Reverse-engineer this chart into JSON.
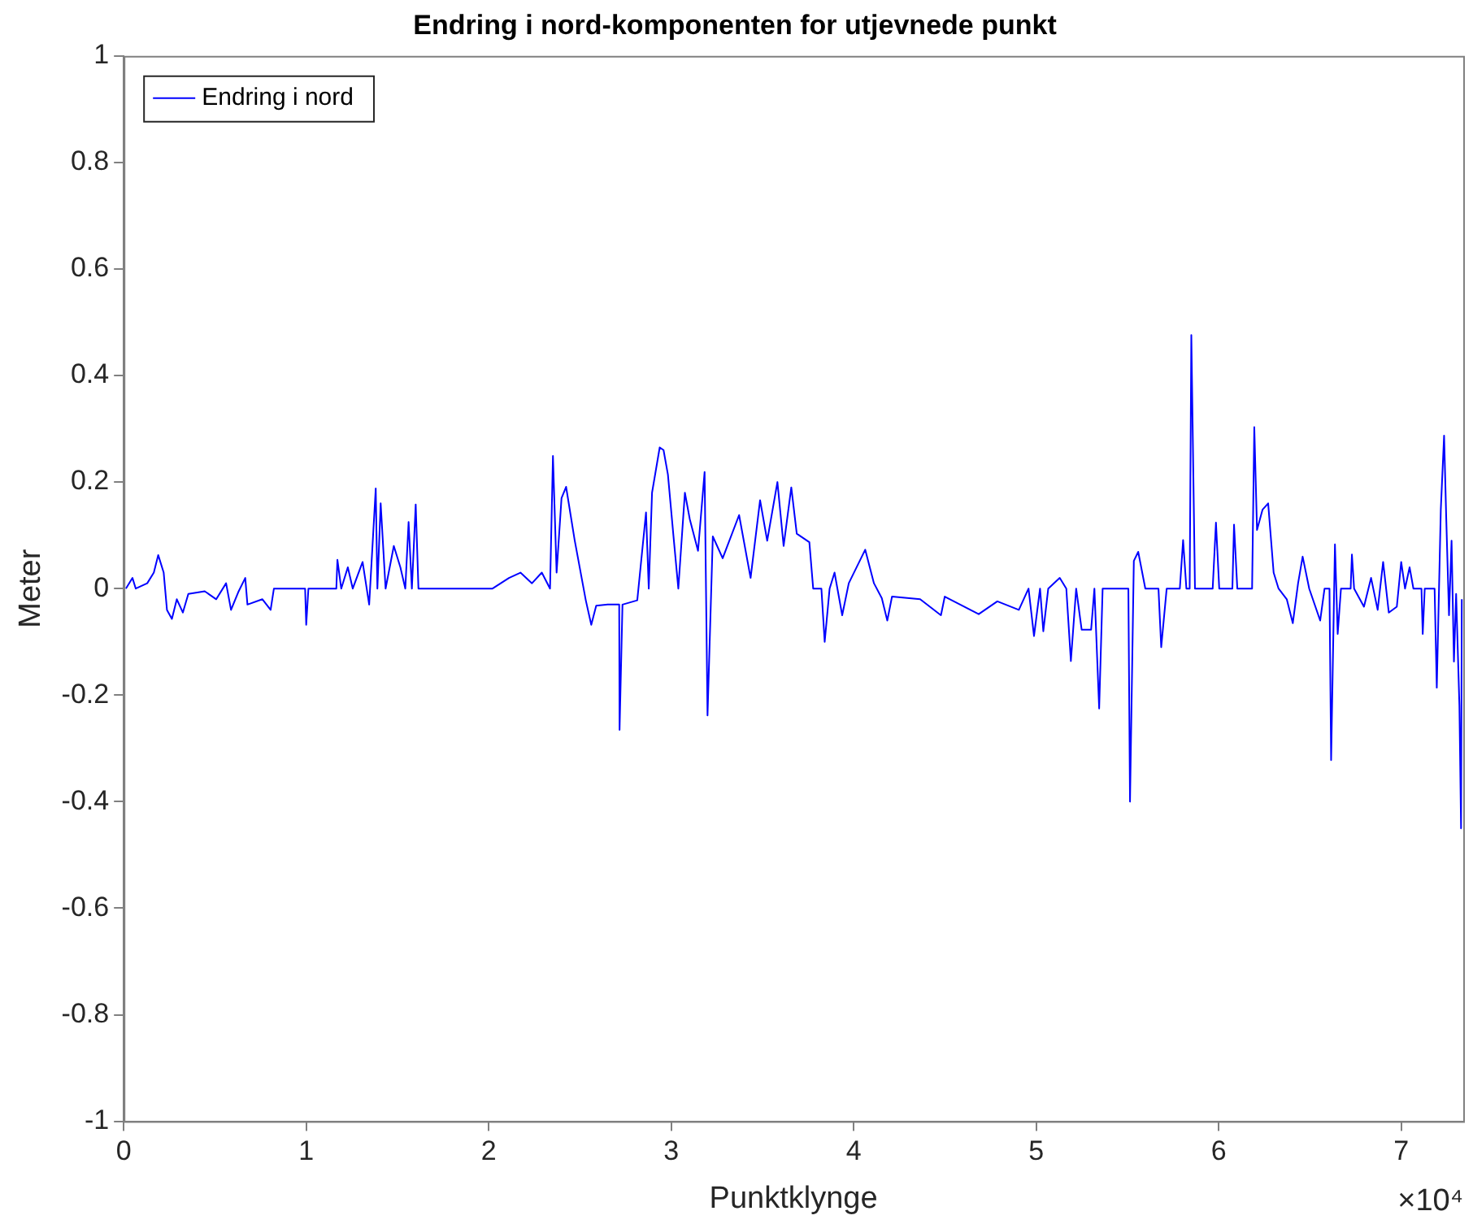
{
  "chart_data": {
    "type": "line",
    "title": "Endring i nord-komponenten for utjevnede punkt",
    "xlabel": "Punktklynge",
    "ylabel": "Meter",
    "legend": "top left",
    "annotations": [
      "×10⁴"
    ],
    "xlim": [
      0,
      7.34
    ],
    "ylim": [
      -1,
      1
    ],
    "xticks": [
      0,
      1,
      2,
      3,
      4,
      5,
      6,
      7
    ],
    "yticks": [
      -1,
      -0.8,
      -0.6,
      -0.4,
      -0.2,
      0,
      0.2,
      0.4,
      0.6,
      0.8,
      1
    ],
    "series": [
      {
        "name": "Endring i nord",
        "color": "#0000ff",
        "x": [
          0.012,
          0.048,
          0.066,
          0.129,
          0.165,
          0.189,
          0.219,
          0.237,
          0.264,
          0.291,
          0.324,
          0.354,
          0.444,
          0.507,
          0.561,
          0.588,
          0.63,
          0.666,
          0.678,
          0.76,
          0.805,
          0.823,
          0.994,
          1.0,
          1.012,
          1.165,
          1.171,
          1.192,
          1.228,
          1.255,
          1.309,
          1.345,
          1.381,
          1.39,
          1.408,
          1.435,
          1.48,
          1.516,
          1.543,
          1.561,
          1.579,
          1.6,
          1.615,
          2.021,
          2.111,
          2.174,
          2.237,
          2.291,
          2.336,
          2.352,
          2.372,
          2.399,
          2.424,
          2.471,
          2.532,
          2.562,
          2.589,
          2.652,
          2.715,
          2.717,
          2.733,
          2.814,
          2.862,
          2.877,
          2.895,
          2.937,
          2.958,
          2.982,
          3.012,
          3.039,
          3.075,
          3.102,
          3.147,
          3.183,
          3.199,
          3.228,
          3.282,
          3.372,
          3.435,
          3.487,
          3.526,
          3.582,
          3.616,
          3.658,
          3.688,
          3.757,
          3.778,
          3.823,
          3.841,
          3.868,
          3.895,
          3.937,
          3.973,
          4.063,
          4.111,
          4.154,
          4.184,
          4.21,
          4.364,
          4.478,
          4.499,
          4.685,
          4.787,
          4.905,
          4.958,
          4.988,
          5.021,
          5.039,
          5.066,
          5.129,
          5.165,
          5.19,
          5.219,
          5.249,
          5.301,
          5.319,
          5.345,
          5.364,
          5.505,
          5.514,
          5.535,
          5.559,
          5.598,
          5.67,
          5.685,
          5.715,
          5.787,
          5.805,
          5.823,
          5.841,
          5.85,
          5.87,
          5.967,
          5.985,
          6.003,
          6.075,
          6.084,
          6.102,
          6.183,
          6.195,
          6.21,
          6.24,
          6.271,
          6.301,
          6.328,
          6.373,
          6.406,
          6.435,
          6.46,
          6.496,
          6.556,
          6.58,
          6.607,
          6.616,
          6.637,
          6.652,
          6.67,
          6.723,
          6.73,
          6.742,
          6.796,
          6.835,
          6.871,
          6.901,
          6.932,
          6.976,
          7.0,
          7.021,
          7.046,
          7.067,
          7.111,
          7.118,
          7.129,
          7.183,
          7.195,
          7.217,
          7.235,
          7.247,
          7.262,
          7.276,
          7.289,
          7.301,
          7.319,
          7.328,
          7.332
        ],
        "values": [
          0,
          0.02,
          0,
          0.01,
          0.03,
          0.063,
          0.03,
          -0.04,
          -0.057,
          -0.02,
          -0.045,
          -0.01,
          -0.005,
          -0.02,
          0.01,
          -0.04,
          -0.005,
          0.02,
          -0.03,
          -0.02,
          -0.04,
          0,
          0,
          -0.068,
          0,
          0,
          0.054,
          0,
          0.04,
          0,
          0.05,
          -0.03,
          0.188,
          0,
          0.16,
          0,
          0.08,
          0.04,
          0,
          0.125,
          0,
          0.158,
          0,
          0,
          0.02,
          0.03,
          0.01,
          0.03,
          0,
          0.249,
          0.03,
          0.17,
          0.191,
          0.091,
          -0.022,
          -0.068,
          -0.032,
          -0.03,
          -0.03,
          -0.265,
          -0.03,
          -0.022,
          0.143,
          0,
          0.18,
          0.265,
          0.26,
          0.214,
          0.1,
          0,
          0.18,
          0.13,
          0.071,
          0.219,
          -0.238,
          0.098,
          0.057,
          0.138,
          0.02,
          0.166,
          0.09,
          0.2,
          0.08,
          0.19,
          0.103,
          0.087,
          0,
          0,
          -0.1,
          0,
          0.03,
          -0.05,
          0.01,
          0.073,
          0.01,
          -0.018,
          -0.06,
          -0.015,
          -0.02,
          -0.05,
          -0.015,
          -0.048,
          -0.024,
          -0.04,
          0,
          -0.089,
          0,
          -0.08,
          0,
          0.02,
          0,
          -0.136,
          0,
          -0.077,
          -0.077,
          0,
          -0.225,
          0,
          0,
          -0.4,
          0.052,
          0.069,
          0,
          0,
          -0.11,
          0,
          0,
          0.091,
          0,
          0,
          0.476,
          0,
          0,
          0.124,
          0,
          0,
          0.12,
          0,
          0,
          0.303,
          0.11,
          0.148,
          0.16,
          0.03,
          0,
          -0.02,
          -0.065,
          0.01,
          0.06,
          0,
          -0.06,
          0,
          0,
          -0.322,
          0.083,
          -0.085,
          0,
          0,
          0.064,
          0,
          -0.034,
          0.02,
          -0.04,
          0.05,
          -0.045,
          -0.034,
          0.05,
          0,
          0.04,
          0,
          0,
          -0.085,
          0,
          0,
          -0.186,
          0.148,
          0.287,
          0.13,
          -0.05,
          0.09,
          -0.137,
          -0.01,
          -0.22,
          -0.45,
          -0.02
        ]
      }
    ]
  }
}
